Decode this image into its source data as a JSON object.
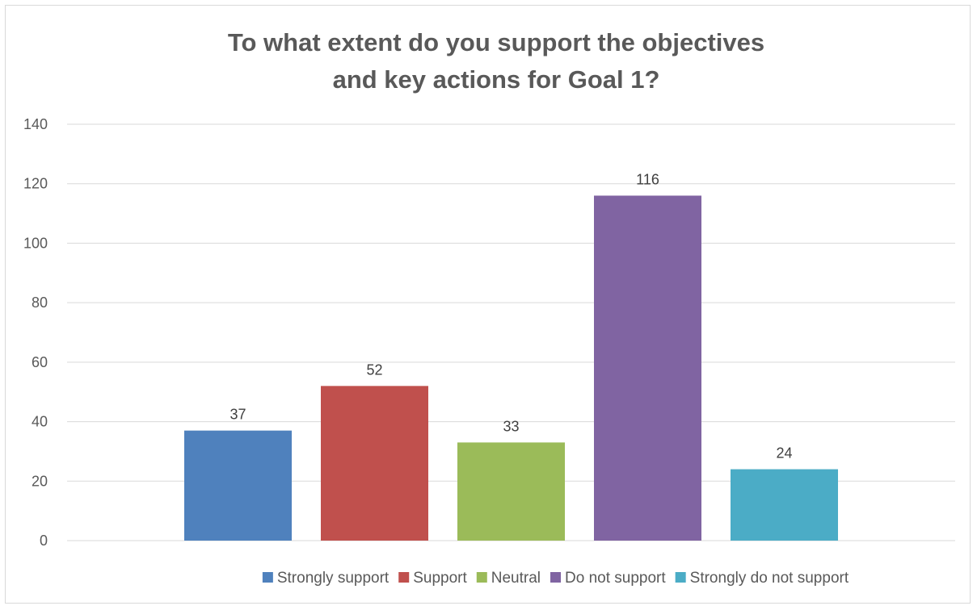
{
  "chart_data": {
    "type": "bar",
    "title_lines": [
      "To what extent do you support the objectives",
      "and key actions for Goal 1?"
    ],
    "categories": [
      "Strongly support",
      "Support",
      "Neutral",
      "Do not support",
      "Strongly do not support"
    ],
    "values": [
      37,
      52,
      33,
      116,
      24
    ],
    "colors": [
      "#4F81BD",
      "#C0504D",
      "#9BBB59",
      "#8064A2",
      "#4BACC6"
    ],
    "ylim": [
      0,
      140
    ],
    "yticks": [
      0,
      20,
      40,
      60,
      80,
      100,
      120,
      140
    ],
    "grid": true,
    "legend_position": "bottom",
    "data_labels": true
  }
}
